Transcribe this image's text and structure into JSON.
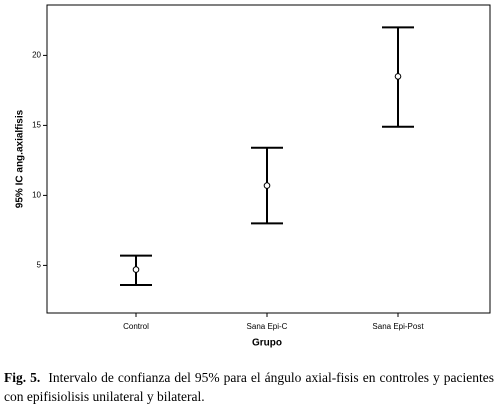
{
  "chart_data": {
    "type": "errorbar",
    "xlabel": "Grupo",
    "ylabel": "95% IC ang.axialfisis",
    "categories": [
      "Control",
      "Sana Epi-C",
      "Sana Epi-Post"
    ],
    "series": [
      {
        "color": "#000000",
        "values": [
          4.7,
          10.7,
          18.5
        ],
        "lower": [
          3.6,
          8.0,
          14.9
        ],
        "upper": [
          5.7,
          13.4,
          22.0
        ]
      }
    ],
    "ylim": [
      1.6,
      23.6
    ],
    "yticks": [
      5,
      10,
      15,
      20
    ],
    "grid": false
  },
  "caption": {
    "label": "Fig. 5.",
    "text": "Intervalo de confianza del 95% para el ángulo axial-fisis en controles y pacientes con epifisiolisis unilateral y bilateral."
  }
}
